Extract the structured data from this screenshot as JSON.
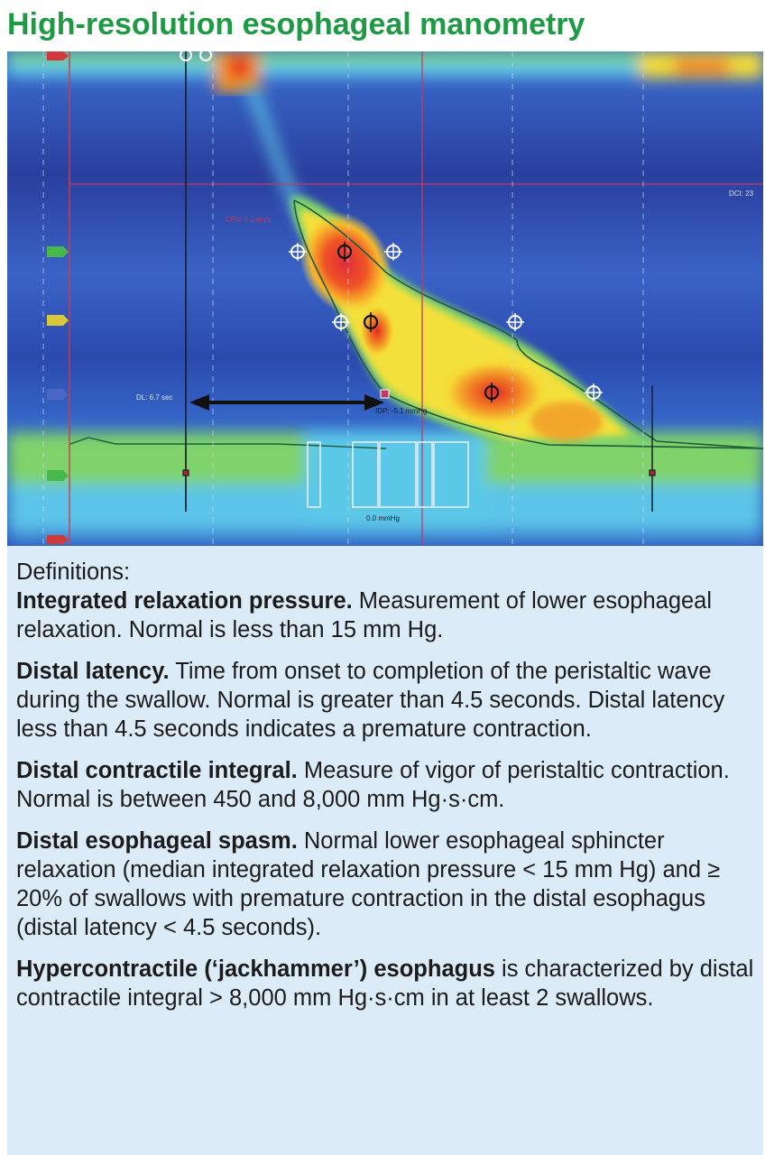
{
  "title": "High-resolution esophageal manometry",
  "plot": {
    "annotations": {
      "dl_label": "DL: 6.7 sec",
      "dci_label": "DCI: 23",
      "cfv_label": "CFV: 2.1 cm/s",
      "idp_label": "IDP: -5.1 mmHg",
      "isobar_label": "0.0 mmHg"
    },
    "colors": {
      "background": "#2b3d9c",
      "blue_band": "#3d6fd0",
      "cyan": "#5cc8e8",
      "green": "#7fd36a",
      "yellow": "#f4e03a",
      "orange": "#f39a26",
      "red": "#e63222",
      "magenta_line": "#c23a63",
      "arrow": "#111111"
    }
  },
  "definitions": {
    "heading": "Definitions:",
    "items": [
      {
        "term": "Integrated relaxation pressure.",
        "text": " Measurement of lower esophageal relaxation. Normal is less than 15 mm Hg."
      },
      {
        "term": "Distal latency.",
        "text": " Time from onset to completion of the peristaltic wave during the swallow. Normal is greater than 4.5 seconds. Distal latency less than 4.5 seconds indicates a premature contraction."
      },
      {
        "term": "Distal contractile integral.",
        "text": " Measure of vigor of peristaltic contraction. Normal is between 450 and 8,000 mm Hg·s·cm."
      },
      {
        "term": "Distal esophageal spasm.",
        "text": " Normal lower esophageal sphincter relaxation (median integrated relaxation pressure < 15 mm Hg) and ≥ 20% of swallows with premature contraction in the distal esophagus (distal latency < 4.5 seconds)."
      },
      {
        "term": "Hypercontractile (‘jackhammer’) esophagus",
        "text": " is characterized by distal contractile integral > 8,000 mm Hg·s·cm in at least 2 swallows."
      }
    ]
  }
}
